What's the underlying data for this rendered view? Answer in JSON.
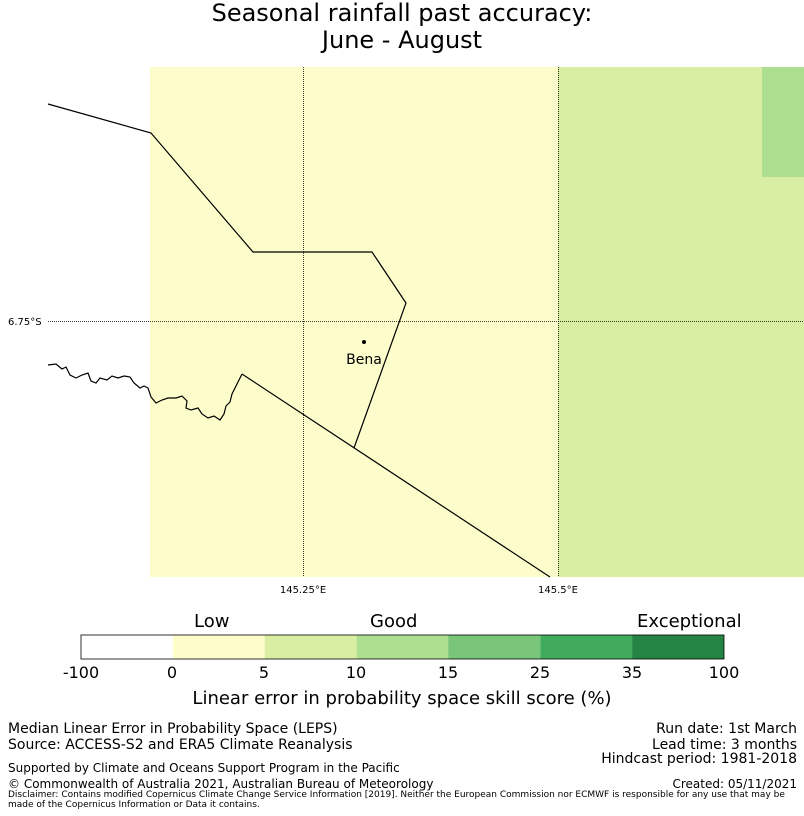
{
  "title": {
    "line1": "Seasonal rainfall past accuracy:",
    "line2": "June - August"
  },
  "map": {
    "lat_label": "6.75°S",
    "lon_labels": [
      "145.25°E",
      "145.5°E"
    ],
    "place": "Bena",
    "colors": {
      "low": "#fdfdcc",
      "good_5_10": "#d9eea2",
      "good_10_15": "#aede8f"
    }
  },
  "colorbar": {
    "categories": [
      "Low",
      "Good",
      "Exceptional"
    ],
    "ticks": [
      "-100",
      "0",
      "5",
      "10",
      "15",
      "25",
      "35",
      "100"
    ],
    "colors": [
      "#ffffff",
      "#fdfdcc",
      "#d9eea2",
      "#aede8f",
      "#79c67a",
      "#41ab5d",
      "#238443"
    ],
    "label": "Linear error in probability space skill score (%)"
  },
  "footer": {
    "left1": "Median Linear Error in Probability Space (LEPS)",
    "left2": "Source: ACCESS-S2 and ERA5 Climate Reanalysis",
    "left3": "Supported by Climate and Oceans Support Program in the Pacific",
    "left4": "© Commonwealth of Australia 2021, Australian Bureau of Meteorology",
    "right1": "Run date: 1st March",
    "right2": "Lead time: 3 months",
    "right3": "Hindcast period: 1981-2018",
    "right4": "Created: 05/11/2021",
    "disclaimer": "Disclaimer: Contains modified Copernicus Climate Change Service Information [2019]. Neither the European Commission nor ECMWF is responsible for any use that may be made of the Copernicus Information or Data it contains."
  }
}
